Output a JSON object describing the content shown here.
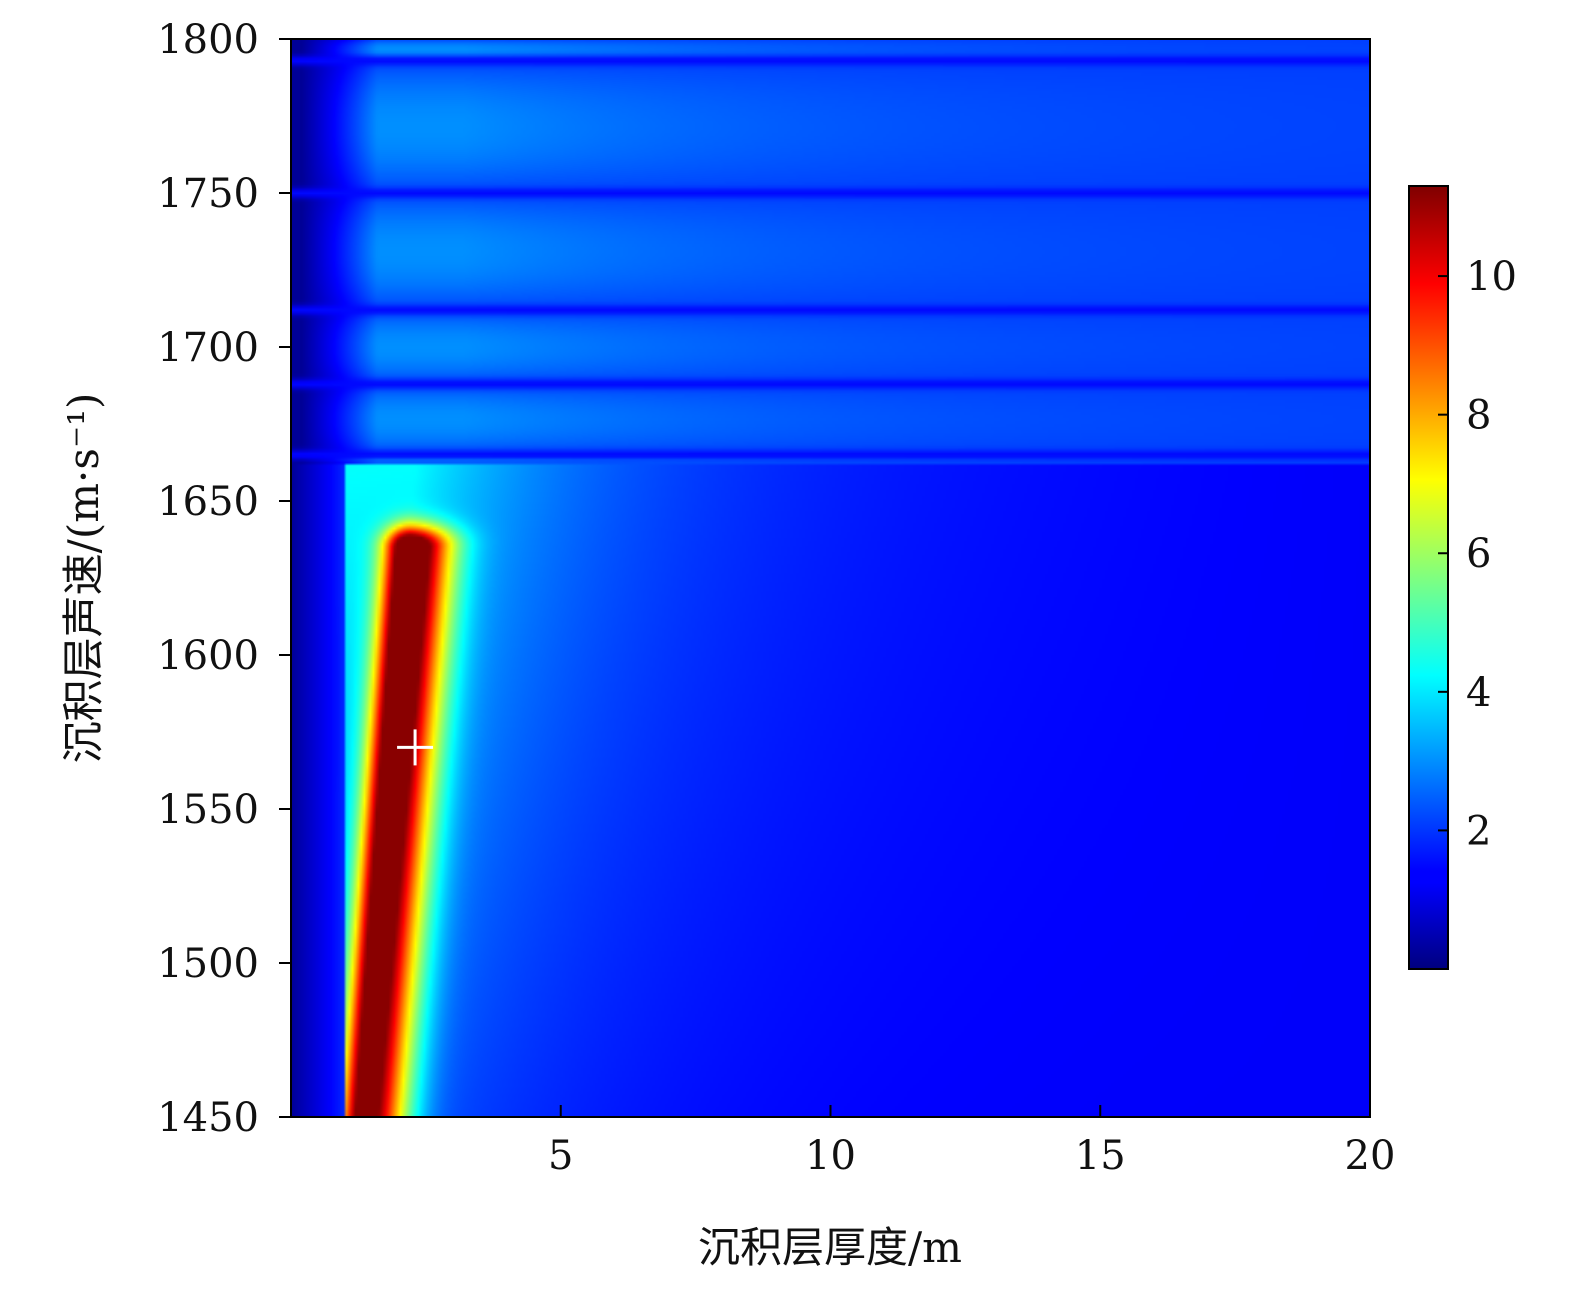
{
  "chart_data": {
    "type": "heatmap",
    "title": "",
    "xlabel": "沉积层厚度/m",
    "ylabel": "沉积层声速/(m·s⁻¹)",
    "xlim": [
      0,
      20
    ],
    "ylim": [
      1450,
      1800
    ],
    "x_ticks": [
      5,
      10,
      15,
      20
    ],
    "y_ticks": [
      1450,
      1500,
      1550,
      1600,
      1650,
      1700,
      1750,
      1800
    ],
    "grid": false,
    "colormap": "jet",
    "colorbar": {
      "range": [
        0,
        11.3
      ],
      "ticks": [
        2,
        4,
        6,
        8,
        10
      ],
      "placement": "right"
    },
    "ridge_peak": {
      "value": 11.2,
      "x_range": [
        1.6,
        3.2
      ],
      "y_range": [
        1450,
        1640
      ]
    },
    "horizontal_bands_y": [
      1665,
      1688,
      1712,
      1750,
      1793
    ],
    "marker": {
      "symbol": "+",
      "color": "#ffffff",
      "x": 2.3,
      "y": 1570
    }
  }
}
